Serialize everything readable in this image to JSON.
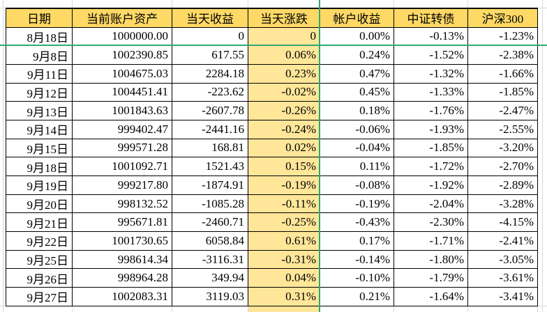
{
  "table": {
    "headers": [
      "日期",
      "当前账户资产",
      "当天收益",
      "当天涨跌",
      "帐户收益",
      "中证转债",
      "沪深300"
    ],
    "rows": [
      [
        "8月18日",
        "1000000.00",
        "0",
        "0",
        "0.00%",
        "-0.13%",
        "-1.23%"
      ],
      [
        "9月8日",
        "1002390.85",
        "617.55",
        "0.06%",
        "0.24%",
        "-1.52%",
        "-2.38%"
      ],
      [
        "9月11日",
        "1004675.03",
        "2284.18",
        "0.23%",
        "0.47%",
        "-1.32%",
        "-1.66%"
      ],
      [
        "9月12日",
        "1004451.41",
        "-223.62",
        "-0.02%",
        "0.45%",
        "-1.33%",
        "-1.85%"
      ],
      [
        "9月13日",
        "1001843.63",
        "-2607.78",
        "-0.26%",
        "0.18%",
        "-1.76%",
        "-2.47%"
      ],
      [
        "9月14日",
        "999402.47",
        "-2441.16",
        "-0.24%",
        "-0.06%",
        "-1.93%",
        "-2.55%"
      ],
      [
        "9月15日",
        "999571.28",
        "168.81",
        "0.02%",
        "-0.04%",
        "-1.85%",
        "-3.20%"
      ],
      [
        "9月18日",
        "1001092.71",
        "1521.43",
        "0.15%",
        "0.11%",
        "-1.72%",
        "-2.70%"
      ],
      [
        "9月19日",
        "999217.80",
        "-1874.91",
        "-0.19%",
        "-0.08%",
        "-1.92%",
        "-2.89%"
      ],
      [
        "9月20日",
        "998132.52",
        "-1085.28",
        "-0.11%",
        "-0.19%",
        "-2.04%",
        "-3.28%"
      ],
      [
        "9月21日",
        "995671.81",
        "-2460.71",
        "-0.25%",
        "-0.43%",
        "-2.30%",
        "-4.15%"
      ],
      [
        "9月22日",
        "1001730.65",
        "6058.84",
        "0.61%",
        "0.17%",
        "-1.71%",
        "-2.41%"
      ],
      [
        "9月25日",
        "998614.34",
        "-3116.31",
        "-0.31%",
        "-0.14%",
        "-1.80%",
        "-3.05%"
      ],
      [
        "9月26日",
        "998964.28",
        "349.94",
        "0.04%",
        "-0.10%",
        "-1.79%",
        "-3.61%"
      ],
      [
        "9月27日",
        "1002083.31",
        "3119.03",
        "0.31%",
        "0.21%",
        "-1.64%",
        "-3.41%"
      ]
    ],
    "highlight_column_index": 3
  },
  "colors": {
    "header_fill": "#ffd966",
    "highlight_fill": "#ffe699",
    "freeze_line": "#2fa86f",
    "border": "#000000",
    "gridline": "#d9d9d9"
  }
}
